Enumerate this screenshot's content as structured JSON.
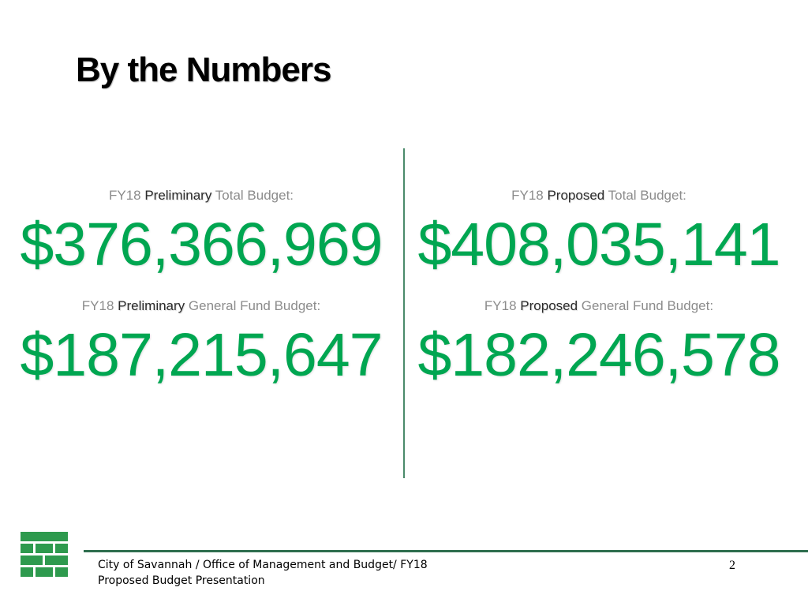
{
  "slide": {
    "title": "By the Numbers",
    "left": {
      "total": {
        "prefix": "FY18 ",
        "emphasis": "Preliminary",
        "suffix": " Total Budget:",
        "amount": "$376,366,969"
      },
      "general": {
        "prefix": "FY18 ",
        "emphasis": "Preliminary",
        "suffix": " General Fund Budget:",
        "amount": "$187,215,647"
      }
    },
    "right": {
      "total": {
        "prefix": "FY18 ",
        "emphasis": "Proposed",
        "suffix": " Total Budget:",
        "amount": "$408,035,141"
      },
      "general": {
        "prefix": "FY18 ",
        "emphasis": "Proposed",
        "suffix": " General Fund Budget:",
        "amount": "$182,246,578"
      }
    }
  },
  "footer": {
    "line1": "City of Savannah / Office of Management and Budget/ FY18",
    "line2": "Proposed Budget Presentation",
    "page_number": "2"
  },
  "logo": {
    "icon": "city-of-savannah-brick-logo-icon",
    "color": "#2e9a4e"
  },
  "colors": {
    "amount": "#00a651",
    "divider": "#4a8a6a",
    "footer_rule": "#2e6e4e"
  }
}
